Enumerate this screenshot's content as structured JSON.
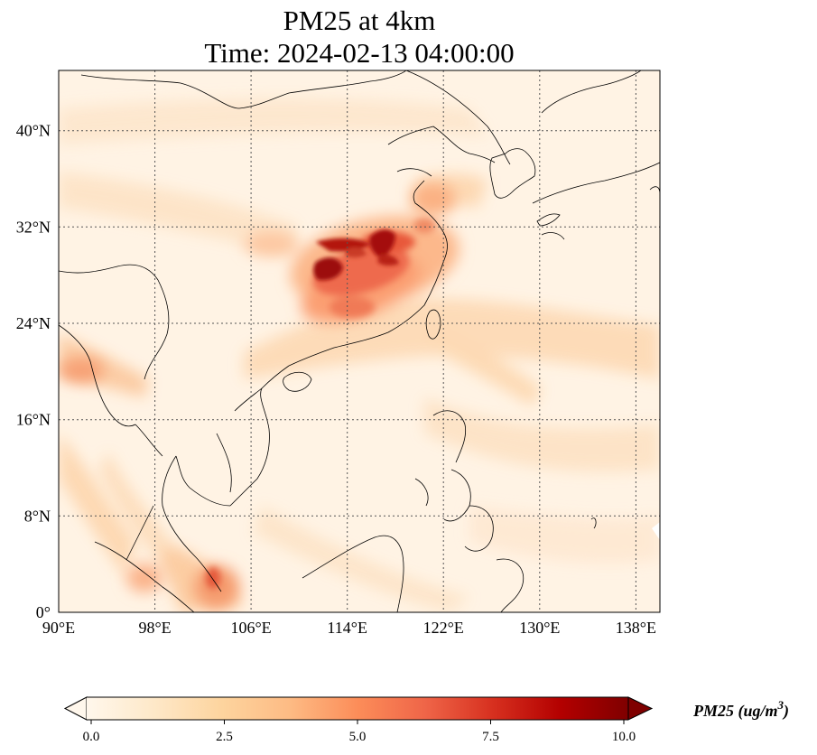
{
  "title_line1": "PM25 at 4km",
  "title_line2": "Time: 2024-02-13 04:00:00",
  "lon_ticks": [
    "90°E",
    "98°E",
    "106°E",
    "114°E",
    "122°E",
    "130°E",
    "138°E"
  ],
  "lat_ticks": [
    "0°",
    "8°N",
    "16°N",
    "24°N",
    "32°N",
    "40°N"
  ],
  "colorbar": {
    "label": "PM25 (ug/m",
    "label_sup": "3",
    "label_end": ")",
    "ticks": [
      "0.0",
      "2.5",
      "5.0",
      "7.5",
      "10.0"
    ],
    "min": 0,
    "max": 10,
    "extend": "both",
    "colormap": [
      "#fff5eb",
      "#fee6ce",
      "#fdd0a2",
      "#fdae6b",
      "#fd8d3c",
      "#f16913",
      "#d94801",
      "#a63603",
      "#7f2704"
    ],
    "colormap_name": "OrRd"
  },
  "map_extent": {
    "lon": [
      90,
      140
    ],
    "lat": [
      0,
      45
    ]
  },
  "colors": {
    "background_field": "#fff3e4",
    "coastline": "#000000",
    "gridline": "#555555"
  }
}
